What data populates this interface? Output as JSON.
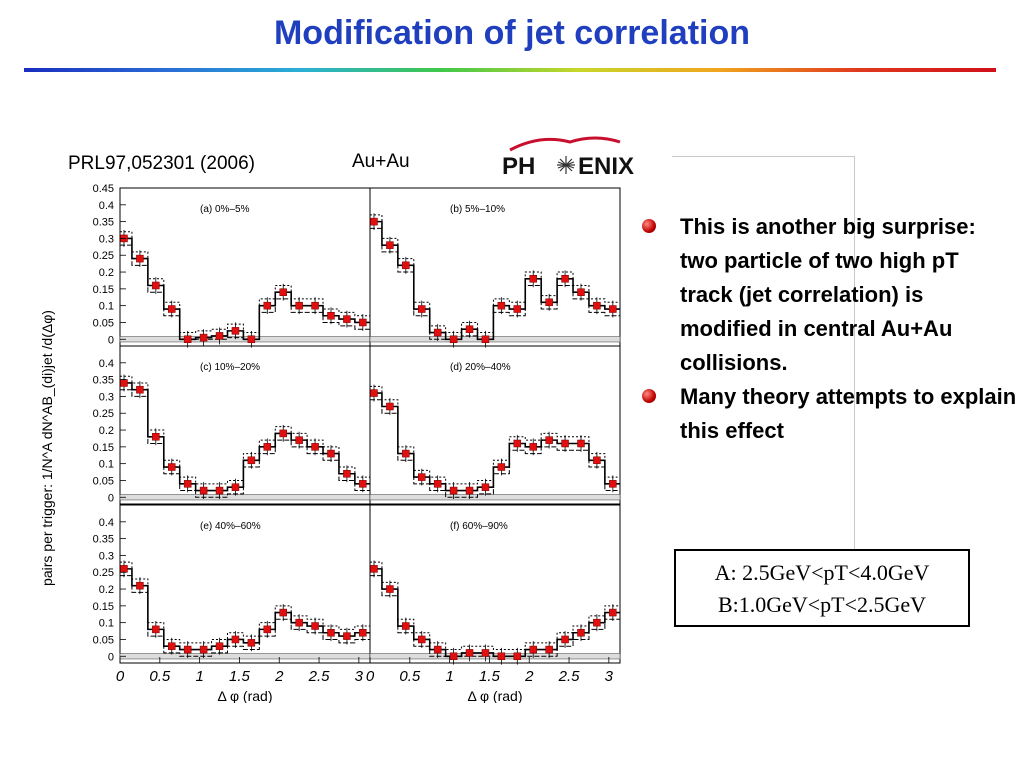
{
  "slide": {
    "title": "Modification of jet correlation",
    "reference": "PRL97,052301 (2006)",
    "system": "Au+Au",
    "logo_text_left": "PH",
    "logo_text_right": "ENIX"
  },
  "bullets": [
    {
      "text": "This is another big surprise: two particle of two high pT track (jet correlation) is modified in central Au+Au collisions."
    },
    {
      "text": "Many theory attempts to explain this effect"
    }
  ],
  "energy_box": {
    "line_a": "A: 2.5GeV<pT<4.0GeV",
    "line_b": "B:1.0GeV<pT<2.5GeV"
  },
  "colors": {
    "title": "#1f3fbf",
    "marker": "#e01010",
    "bullet": "#c00000"
  },
  "chart_data": {
    "type": "scatter",
    "ylabel": "pairs per trigger: 1/N^A dN^AB_(di)jet /d(Δφ)",
    "xlabel": "Δ φ (rad)",
    "xlim": [
      0,
      3.14
    ],
    "x_ticks": [
      "0",
      "0.5",
      "1",
      "1.5",
      "2",
      "2.5",
      "3"
    ],
    "y_ticks": [
      "0",
      "0.05",
      "0.1",
      "0.15",
      "0.2",
      "0.25",
      "0.3",
      "0.35",
      "0.4"
    ],
    "top_y_tick": "0.45",
    "x": [
      0.05,
      0.25,
      0.45,
      0.65,
      0.85,
      1.05,
      1.25,
      1.45,
      1.65,
      1.85,
      2.05,
      2.25,
      2.45,
      2.65,
      2.85,
      3.05
    ],
    "panels": [
      {
        "label": "(a) 0%–5%",
        "values": [
          0.3,
          0.24,
          0.16,
          0.09,
          0.0,
          0.005,
          0.01,
          0.025,
          0.0,
          0.1,
          0.14,
          0.1,
          0.1,
          0.07,
          0.06,
          0.05
        ]
      },
      {
        "label": "(b) 5%–10%",
        "values": [
          0.35,
          0.28,
          0.22,
          0.09,
          0.02,
          0.0,
          0.03,
          0.0,
          0.1,
          0.09,
          0.18,
          0.11,
          0.18,
          0.14,
          0.1,
          0.09
        ]
      },
      {
        "label": "(c) 10%–20%",
        "values": [
          0.34,
          0.32,
          0.18,
          0.09,
          0.04,
          0.02,
          0.02,
          0.03,
          0.11,
          0.15,
          0.19,
          0.17,
          0.15,
          0.13,
          0.07,
          0.04
        ]
      },
      {
        "label": "(d) 20%–40%",
        "values": [
          0.31,
          0.27,
          0.13,
          0.06,
          0.04,
          0.02,
          0.02,
          0.03,
          0.09,
          0.16,
          0.15,
          0.17,
          0.16,
          0.16,
          0.11,
          0.04
        ]
      },
      {
        "label": "(e) 40%–60%",
        "values": [
          0.26,
          0.21,
          0.08,
          0.03,
          0.02,
          0.02,
          0.03,
          0.05,
          0.04,
          0.08,
          0.13,
          0.1,
          0.09,
          0.07,
          0.06,
          0.07
        ]
      },
      {
        "label": "(f) 60%–90%",
        "values": [
          0.26,
          0.2,
          0.09,
          0.05,
          0.02,
          0.0,
          0.01,
          0.01,
          0.0,
          0.0,
          0.02,
          0.02,
          0.05,
          0.07,
          0.1,
          0.13
        ]
      }
    ]
  }
}
